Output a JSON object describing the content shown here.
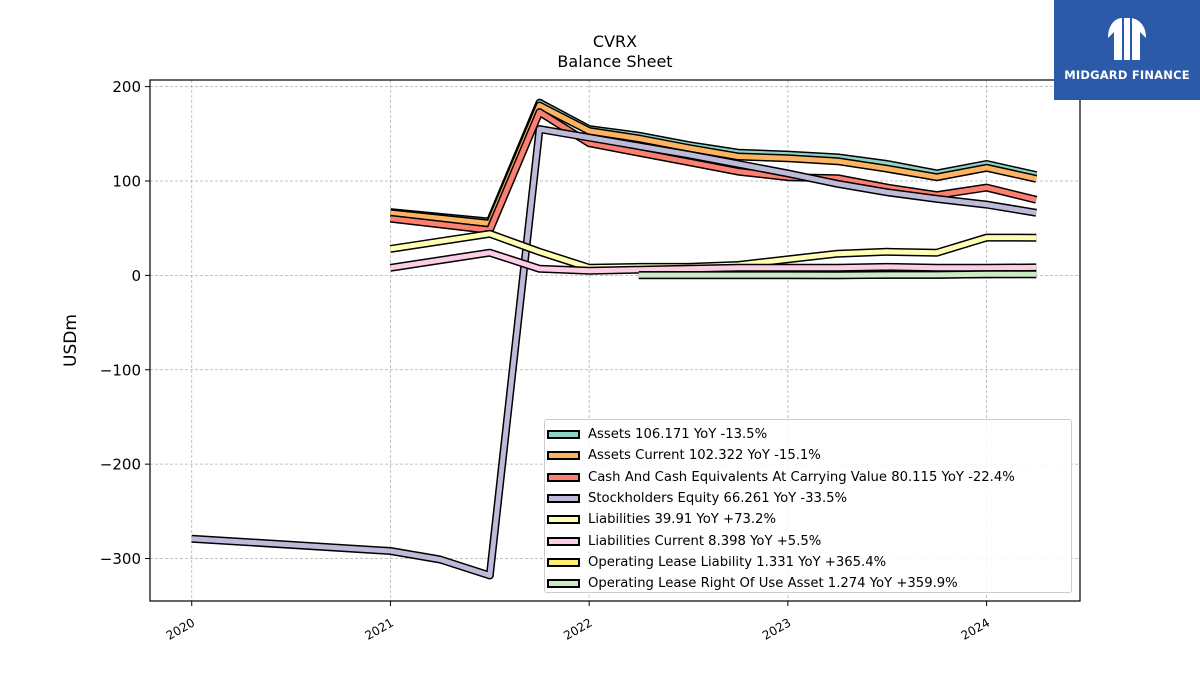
{
  "header": {
    "title": "CVRX",
    "subtitle": "Balance  Sheet"
  },
  "logo": {
    "text": "MIDGARD FINANCE"
  },
  "chart_data": {
    "type": "line",
    "title": "CVRX",
    "subtitle": "Balance  Sheet",
    "xlabel": "",
    "ylabel": "USDm",
    "xlim": [
      2019.79,
      2024.47
    ],
    "ylim": [
      -345,
      207
    ],
    "x_ticks": [
      "2020",
      "2021",
      "2022",
      "2023",
      "2024"
    ],
    "y_ticks": [
      200,
      100,
      0,
      -100,
      -200,
      -300
    ],
    "y_tick_labels": [
      "200",
      "100",
      "0",
      "−100",
      "−200",
      "−300"
    ],
    "grid": true,
    "legend_position": "lower-right",
    "series": [
      {
        "name": "Assets",
        "legend": "Assets  106.171 YoY -13.5%",
        "color": "#8dd3c7",
        "x": [
          2021.0,
          2021.5,
          2021.75,
          2022.0,
          2022.25,
          2022.5,
          2022.75,
          2023.0,
          2023.25,
          2023.5,
          2023.75,
          2024.0,
          2024.25
        ],
        "y": [
          67,
          57,
          183,
          155,
          148,
          138,
          130,
          128,
          125,
          118,
          108,
          118,
          106.2
        ]
      },
      {
        "name": "Assets Current",
        "legend": "Assets Current  102.322 YoY -15.1%",
        "color": "#fdb462",
        "x": [
          2021.0,
          2021.5,
          2021.75,
          2022.0,
          2022.25,
          2022.5,
          2022.75,
          2023.0,
          2023.25,
          2023.5,
          2023.75,
          2024.0,
          2024.25
        ],
        "y": [
          66,
          55,
          180,
          153,
          145,
          135,
          126,
          124,
          121,
          113,
          104,
          114,
          102.3
        ]
      },
      {
        "name": "Cash And Cash Equivalents At Carrying Value",
        "legend": "Cash And Cash Equivalents At Carrying Value  80.115 YoY -22.4%",
        "color": "#fb8072",
        "x": [
          2021.0,
          2021.5,
          2021.75,
          2022.0,
          2022.25,
          2022.5,
          2022.75,
          2023.0,
          2023.25,
          2023.5,
          2023.75,
          2024.0,
          2024.25
        ],
        "y": [
          60,
          48,
          173,
          140,
          130,
          120,
          110,
          104,
          103,
          93,
          85,
          93,
          80.1
        ]
      },
      {
        "name": "Stockholders Equity",
        "legend": "Stockholders Equity  66.261 YoY -33.5%",
        "color": "#bebada",
        "x": [
          2020.0,
          2021.0,
          2021.25,
          2021.5,
          2021.75,
          2022.0,
          2022.25,
          2022.5,
          2022.75,
          2023.0,
          2023.25,
          2023.5,
          2023.75,
          2024.0,
          2024.25
        ],
        "y": [
          -279,
          -292,
          -301,
          -318,
          155,
          146,
          137,
          128,
          118,
          108,
          97,
          88,
          81,
          75,
          66.3
        ]
      },
      {
        "name": "Liabilities",
        "legend": "Liabilities  39.91 YoY +73.2%",
        "color": "#ffffb3",
        "x": [
          2021.0,
          2021.5,
          2021.75,
          2022.0,
          2022.25,
          2022.5,
          2022.75,
          2023.0,
          2023.25,
          2023.5,
          2023.75,
          2024.0,
          2024.25
        ],
        "y": [
          28,
          44,
          25,
          8,
          9,
          9,
          11,
          17,
          23,
          25,
          24,
          40,
          39.9
        ]
      },
      {
        "name": "Liabilities Current",
        "legend": "Liabilities Current  8.398 YoY +5.5%",
        "color": "#fccde5",
        "x": [
          2021.0,
          2021.5,
          2021.75,
          2022.0,
          2022.25,
          2022.5,
          2022.75,
          2023.0,
          2023.25,
          2023.5,
          2023.75,
          2024.0,
          2024.25
        ],
        "y": [
          8,
          24,
          7,
          5,
          6,
          7,
          8,
          8,
          8,
          9,
          8,
          8,
          8.4
        ]
      },
      {
        "name": "Operating Lease Liability",
        "legend": "Operating Lease Liability  1.331 YoY +365.4%",
        "color": "#ffed6f",
        "x": [
          2022.25,
          2022.5,
          2022.75,
          2023.0,
          2023.25,
          2023.5,
          2023.75,
          2024.0,
          2024.25
        ],
        "y": [
          0.3,
          0.3,
          0.3,
          0.3,
          0.3,
          0.6,
          0.6,
          1.2,
          1.33
        ]
      },
      {
        "name": "Operating Lease Right Of Use Asset",
        "legend": "Operating Lease Right Of Use Asset  1.274 YoY +359.9%",
        "color": "#ccebc5",
        "x": [
          2022.25,
          2022.5,
          2022.75,
          2023.0,
          2023.25,
          2023.5,
          2023.75,
          2024.0,
          2024.25
        ],
        "y": [
          0.3,
          0.3,
          0.3,
          0.3,
          0.2,
          0.5,
          0.5,
          1.1,
          1.27
        ]
      }
    ]
  }
}
